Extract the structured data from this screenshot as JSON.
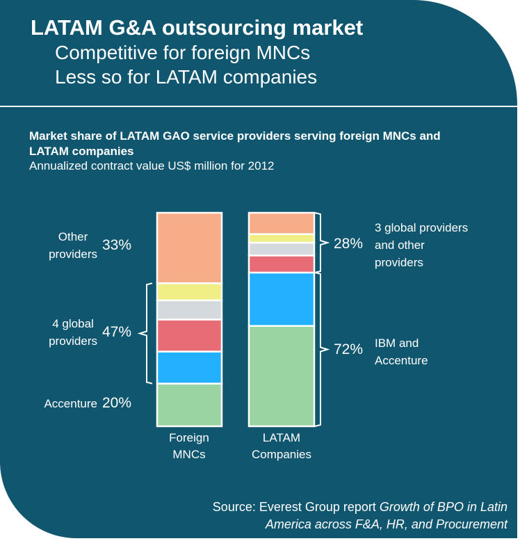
{
  "header": {
    "title": "LATAM G&A outsourcing market",
    "subtitle_1": "Competitive for foreign MNCs",
    "subtitle_2": "Less so for LATAM companies"
  },
  "colors": {
    "background": "#11566f",
    "orange": "#f7ad88",
    "yellow": "#f0ef86",
    "gray": "#d4d9de",
    "red": "#e76c76",
    "blue": "#22b0ff",
    "green": "#9ad4a2"
  },
  "chart_data": {
    "type": "bar",
    "stacked": true,
    "title": "Market share of LATAM GAO service providers serving foreign MNCs and LATAM companies",
    "subtitle": "Annualized contract value US$ million for 2012",
    "categories": [
      "Foreign MNCs",
      "LATAM Companies"
    ],
    "category_lines": [
      [
        "Foreign",
        "MNCs"
      ],
      [
        "LATAM",
        "Companies"
      ]
    ],
    "ylim": [
      0,
      100
    ],
    "unit": "%",
    "segments_bottom_to_top": [
      "green",
      "blue",
      "red",
      "gray",
      "yellow",
      "orange"
    ],
    "series": [
      {
        "color": "#9ad4a2",
        "values": [
          20,
          47
        ]
      },
      {
        "color": "#22b0ff",
        "values": [
          15,
          25
        ]
      },
      {
        "color": "#e76c76",
        "values": [
          15,
          8
        ]
      },
      {
        "color": "#d4d9de",
        "values": [
          9,
          6
        ]
      },
      {
        "color": "#f0ef86",
        "values": [
          8,
          4
        ]
      },
      {
        "color": "#f7ad88",
        "values": [
          33,
          10
        ]
      }
    ],
    "annotations": {
      "left": [
        {
          "lines": [
            "Other",
            "providers"
          ],
          "pct": "33%"
        },
        {
          "lines": [
            "4 global",
            "providers"
          ],
          "pct": "47%"
        },
        {
          "lines": [
            "Accenture"
          ],
          "pct": "20%"
        }
      ],
      "right": [
        {
          "lines": [
            "3 global providers",
            "and other",
            "providers"
          ],
          "pct": "28%"
        },
        {
          "lines": [
            "IBM and",
            "Accenture"
          ],
          "pct": "72%"
        }
      ]
    }
  },
  "source": {
    "prefix": "Source: Everest Group report ",
    "italic_1": "Growth of BPO in Latin",
    "italic_2": "America across F&A, HR, and Procurement"
  }
}
